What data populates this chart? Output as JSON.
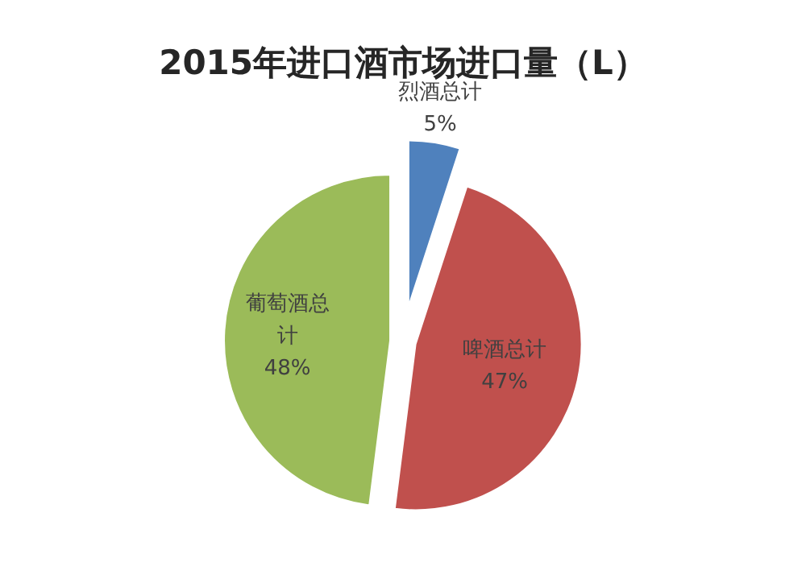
{
  "chart_data": {
    "type": "pie",
    "title": "2015年进口酒市场进口量（L）",
    "categories": [
      "烈酒总计",
      "啤酒总计",
      "葡萄酒总计"
    ],
    "values": [
      5,
      47,
      48
    ],
    "colors": [
      "#4f81bd",
      "#c0504d",
      "#9bbb59"
    ],
    "value_labels": [
      "5%",
      "47%",
      "48%"
    ]
  }
}
